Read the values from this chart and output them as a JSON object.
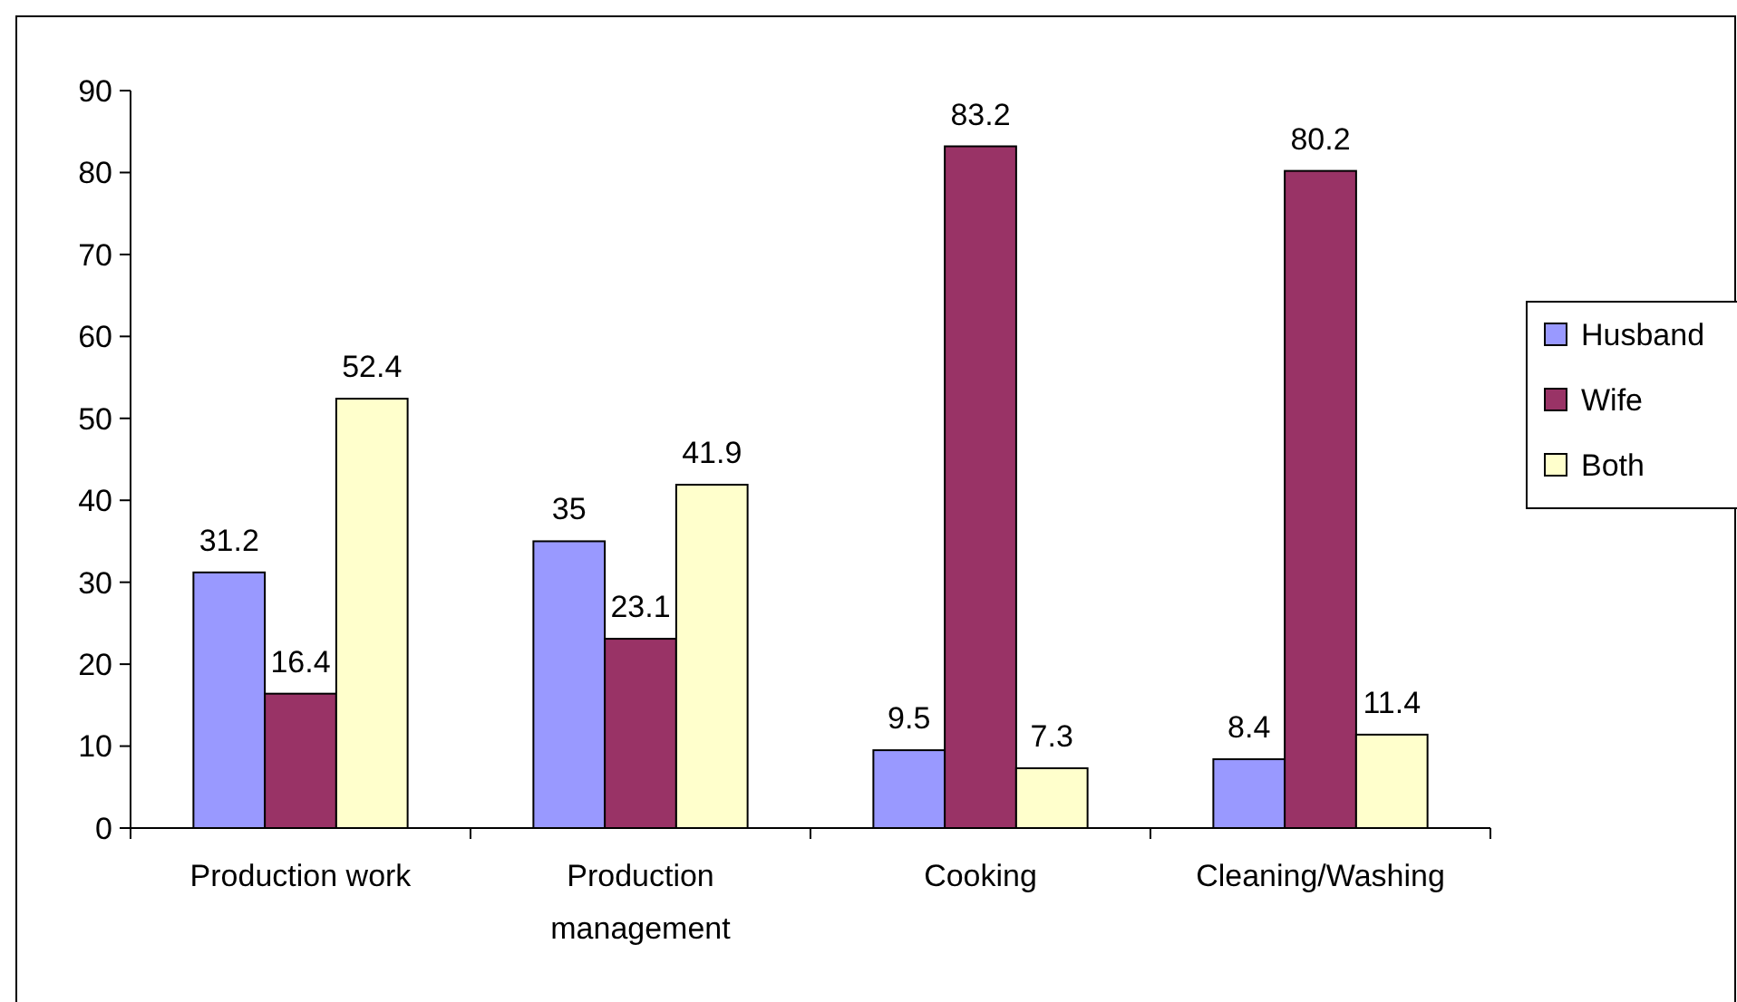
{
  "chart_data": {
    "type": "bar",
    "categories": [
      "Production work",
      "Production management",
      "Cooking",
      "Cleaning/Washing"
    ],
    "series": [
      {
        "name": "Husband",
        "color": "#9999ff",
        "values": [
          31.2,
          35,
          9.5,
          8.4
        ]
      },
      {
        "name": "Wife",
        "color": "#993366",
        "values": [
          16.4,
          23.1,
          83.2,
          80.2
        ]
      },
      {
        "name": "Both",
        "color": "#ffffcc",
        "values": [
          52.4,
          41.9,
          7.3,
          11.4
        ]
      }
    ],
    "ylim": [
      0,
      90
    ],
    "yticks": [
      0,
      10,
      20,
      30,
      40,
      50,
      60,
      70,
      80,
      90
    ],
    "grid": false,
    "legend": "right",
    "data_labels": true
  }
}
